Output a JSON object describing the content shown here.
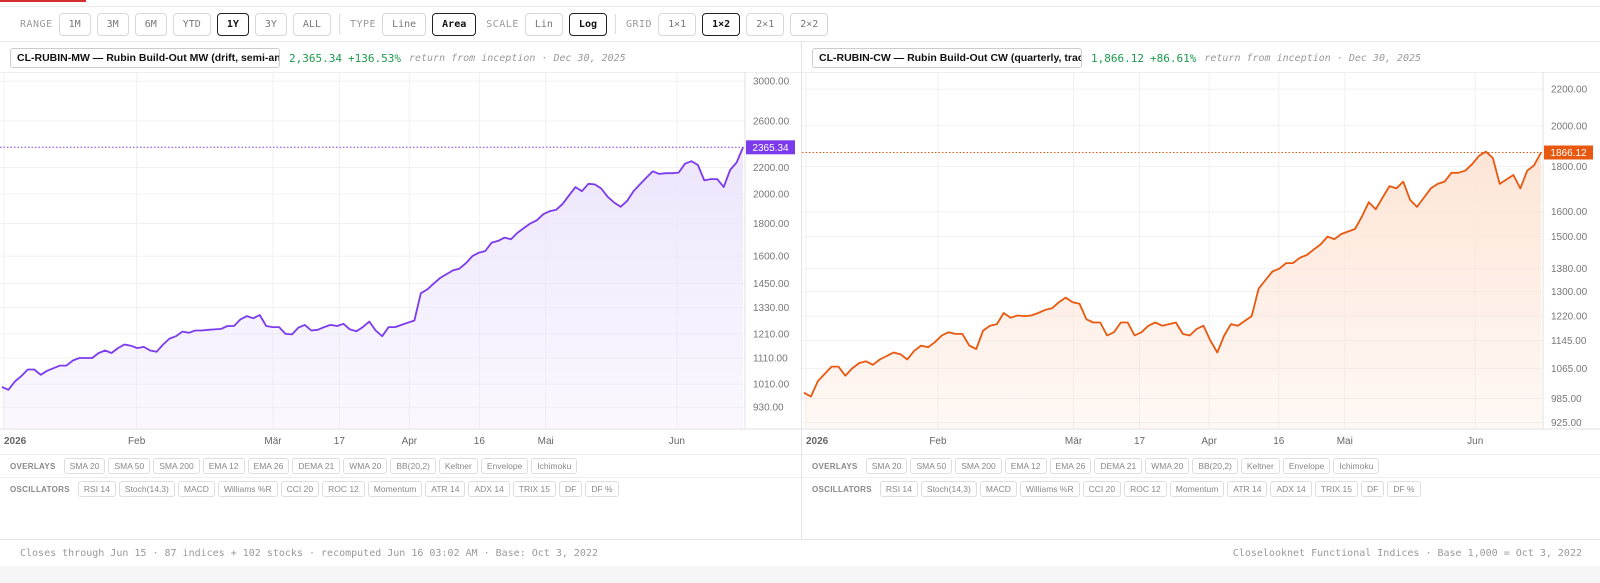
{
  "toolbar": {
    "range_label": "RANGE",
    "ranges": [
      "1M",
      "3M",
      "6M",
      "YTD",
      "1Y",
      "3Y",
      "ALL"
    ],
    "range_selected": "1Y",
    "type_label": "TYPE",
    "types": [
      "Line",
      "Area"
    ],
    "type_selected": "Area",
    "scale_label": "SCALE",
    "scales": [
      "Lin",
      "Log"
    ],
    "scale_selected": "Log",
    "grid_label": "GRID",
    "grids": [
      "1×1",
      "1×2",
      "2×1",
      "2×2"
    ],
    "grid_selected": "1×2"
  },
  "panels": [
    {
      "selector_text": "CL-RUBIN-MW — Rubin Build-Out MW (drift, semi-an",
      "value": "2,365.34",
      "change": "+136.53%",
      "note": "return from inception · Dec 30, 2025"
    },
    {
      "selector_text": "CL-RUBIN-CW — Rubin Build-Out CW (quarterly, trac",
      "value": "1,866.12",
      "change": "+86.61%",
      "note": "return from inception · Dec 30, 2025"
    }
  ],
  "indicators": {
    "overlays_label": "OVERLAYS",
    "overlays": [
      "SMA 20",
      "SMA 50",
      "SMA 200",
      "EMA 12",
      "EMA 26",
      "DEMA 21",
      "WMA 20",
      "BB(20,2)",
      "Keltner",
      "Envelope",
      "Ichimoku"
    ],
    "oscillators_label": "OSCILLATORS",
    "oscillators": [
      "RSI 14",
      "Stoch(14,3)",
      "MACD",
      "Williams %R",
      "CCI 20",
      "ROC 12",
      "Momentum",
      "ATR 14",
      "ADX 14",
      "TRIX 15",
      "DF",
      "DF %"
    ]
  },
  "footer": {
    "left": "Closes through Jun 15 · 87 indices + 102 stocks · recomputed Jun 16 03:02 AM · Base: Oct 3, 2022",
    "right": "Closelooknet Functional Indices · Base 1,000 = Oct 3, 2022"
  },
  "chart_data": [
    {
      "type": "area",
      "series_id": "CL-RUBIN-MW",
      "color": "#7c3aed",
      "fill": "#ede5fc",
      "scale": "log",
      "ylim": [
        860,
        3100
      ],
      "yticks": [
        "3000.00",
        "2600.00",
        "2200.00",
        "2000.00",
        "1800.00",
        "1600.00",
        "1450.00",
        "1330.00",
        "1210.00",
        "1110.00",
        "1010.00",
        "930.00"
      ],
      "xticks": [
        "2026",
        "Feb",
        "Mär",
        "17",
        "Apr",
        "16",
        "Mai",
        "Jun"
      ],
      "last_label": "2365.34",
      "values": [
        1000,
        990,
        1020,
        1040,
        1065,
        1065,
        1045,
        1060,
        1070,
        1080,
        1080,
        1100,
        1110,
        1110,
        1110,
        1130,
        1140,
        1130,
        1150,
        1165,
        1160,
        1150,
        1155,
        1140,
        1135,
        1165,
        1190,
        1200,
        1220,
        1215,
        1225,
        1225,
        1228,
        1230,
        1232,
        1245,
        1245,
        1275,
        1290,
        1280,
        1295,
        1245,
        1240,
        1240,
        1210,
        1208,
        1238,
        1250,
        1225,
        1228,
        1240,
        1250,
        1245,
        1255,
        1230,
        1222,
        1240,
        1265,
        1225,
        1200,
        1240,
        1240,
        1250,
        1260,
        1270,
        1400,
        1420,
        1450,
        1480,
        1500,
        1520,
        1530,
        1560,
        1600,
        1620,
        1630,
        1680,
        1690,
        1710,
        1700,
        1740,
        1770,
        1800,
        1820,
        1860,
        1880,
        1890,
        1930,
        1990,
        2050,
        2020,
        2075,
        2070,
        2040,
        1980,
        1940,
        1910,
        1950,
        2020,
        2070,
        2120,
        2170,
        2150,
        2155,
        2155,
        2160,
        2230,
        2250,
        2220,
        2100,
        2110,
        2110,
        2050,
        2180,
        2240,
        2365.34
      ]
    },
    {
      "type": "area",
      "series_id": "CL-RUBIN-CW",
      "color": "#e8580f",
      "fill": "#fde5d7",
      "scale": "log",
      "ylim": [
        910,
        2300
      ],
      "yticks": [
        "2200.00",
        "2000.00",
        "1800.00",
        "1600.00",
        "1500.00",
        "1380.00",
        "1300.00",
        "1220.00",
        "1145.00",
        "1065.00",
        "985.00",
        "925.00"
      ],
      "xticks": [
        "2026",
        "Feb",
        "Mär",
        "17",
        "Apr",
        "16",
        "Mai",
        "Jun"
      ],
      "last_label": "1866.12",
      "values": [
        1000,
        990,
        1030,
        1050,
        1070,
        1070,
        1045,
        1065,
        1080,
        1085,
        1075,
        1090,
        1100,
        1110,
        1105,
        1090,
        1115,
        1130,
        1125,
        1140,
        1160,
        1170,
        1165,
        1165,
        1130,
        1120,
        1175,
        1190,
        1195,
        1230,
        1215,
        1222,
        1220,
        1222,
        1230,
        1240,
        1245,
        1265,
        1280,
        1265,
        1260,
        1210,
        1200,
        1200,
        1160,
        1170,
        1200,
        1200,
        1160,
        1170,
        1190,
        1200,
        1190,
        1195,
        1200,
        1165,
        1160,
        1180,
        1190,
        1145,
        1110,
        1160,
        1195,
        1190,
        1205,
        1220,
        1310,
        1340,
        1370,
        1380,
        1400,
        1400,
        1420,
        1430,
        1450,
        1470,
        1500,
        1490,
        1510,
        1520,
        1530,
        1580,
        1640,
        1610,
        1660,
        1710,
        1700,
        1730,
        1650,
        1620,
        1660,
        1700,
        1720,
        1730,
        1770,
        1770,
        1780,
        1810,
        1850,
        1870,
        1840,
        1720,
        1740,
        1760,
        1700,
        1780,
        1805,
        1866.12
      ]
    }
  ]
}
